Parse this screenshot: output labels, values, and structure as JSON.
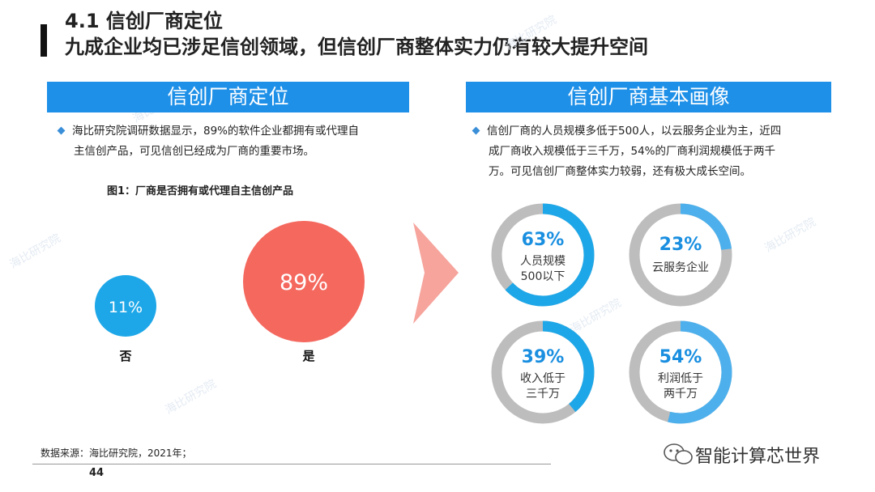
{
  "header": {
    "title": "4.1 信创厂商定位",
    "subtitle": "九成企业均已涉足信创领域，但信创厂商整体实力仍有较大提升空间"
  },
  "left": {
    "banner": "信创厂商定位",
    "paragraph_line1": "海比研究院调研数据显示，89%的软件企业都拥有或代理自",
    "paragraph_line2": "主信创产品，可见信创已经成为厂商的重要市场。"
  },
  "right": {
    "banner": "信创厂商基本画像",
    "paragraph_line1": "信创厂商的人员规模多低于500人，以云服务企业为主，近四",
    "paragraph_line2": "成厂商收入规模低于三千万，54%的厂商利润规模低于两千",
    "paragraph_line3": "万。可见信创厂商整体实力较弱，还有极大成长空间。"
  },
  "chart_data": [
    {
      "type": "bubble",
      "title": "图1：厂商是否拥有或代理自主信创产品",
      "categories": [
        "否",
        "是"
      ],
      "values": [
        11,
        89
      ],
      "value_labels": [
        "11%",
        "89%"
      ],
      "colors": [
        "#1ea7e8",
        "#f4685e"
      ]
    },
    {
      "type": "pie",
      "subtype": "donut",
      "items": [
        {
          "value": 63,
          "value_label": "63%",
          "label_line1": "人员规模",
          "label_line2": "500以下",
          "color": "#1ea7e8"
        },
        {
          "value": 23,
          "value_label": "23%",
          "label_line1": "云服务企业",
          "label_line2": "",
          "color": "#4db0ec"
        },
        {
          "value": 39,
          "value_label": "39%",
          "label_line1": "收入低于",
          "label_line2": "三千万",
          "color": "#1ea7e8"
        },
        {
          "value": 54,
          "value_label": "54%",
          "label_line1": "利润低于",
          "label_line2": "两千万",
          "color": "#4db0ec"
        }
      ],
      "track_color": "#bdbdbd"
    }
  ],
  "footer": {
    "source": "数据来源：海比研究院，2021年；",
    "page_number": "44",
    "brand": "智能计算芯世界"
  },
  "watermark": "海比研究院"
}
